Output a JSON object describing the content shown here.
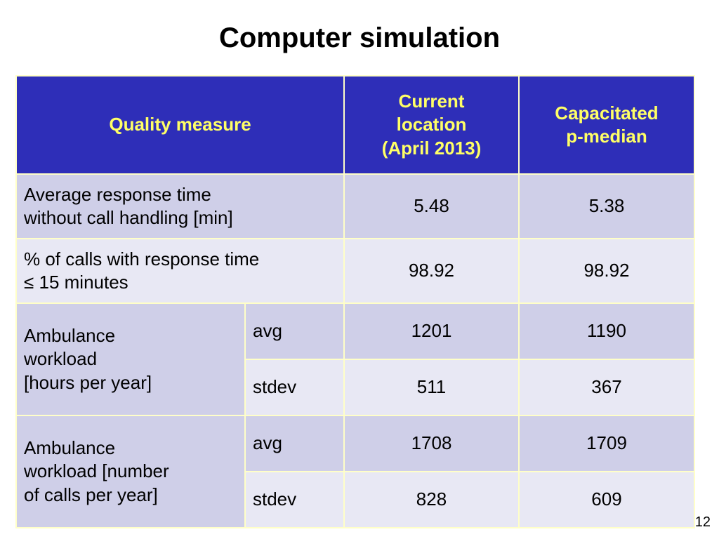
{
  "title": "Computer simulation",
  "table": {
    "header": [
      "Quality measure",
      "Current\nlocation\n(April 2013)",
      "Capacitated\np-median"
    ],
    "rows": [
      {
        "label": "Average response time\nwithout call handling [min]",
        "values": [
          5.48,
          5.38
        ]
      },
      {
        "label": "% of calls with response time\n≤ 15 minutes",
        "values": [
          98.92,
          98.92
        ]
      }
    ],
    "groups": [
      {
        "label": "Ambulance\nworkload\n[hours per year]",
        "stats": [
          {
            "stat": "avg",
            "values": [
              1201,
              1190
            ]
          },
          {
            "stat": "stdev",
            "values": [
              511,
              367
            ]
          }
        ]
      },
      {
        "label": "Ambulance\nworkload [number\nof calls per year]",
        "stats": [
          {
            "stat": "avg",
            "values": [
              1708,
              1709
            ]
          },
          {
            "stat": "stdev",
            "values": [
              828,
              609
            ]
          }
        ]
      }
    ]
  },
  "page_number": 12
}
